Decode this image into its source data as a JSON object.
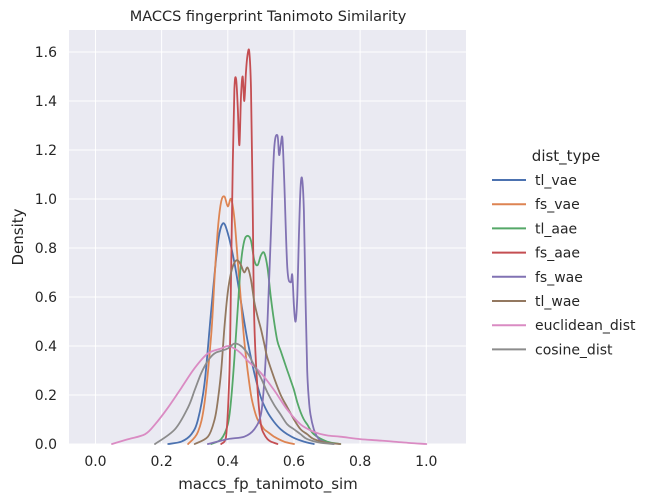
{
  "chart_data": {
    "type": "line",
    "title": "MACCS fingerprint Tanimoto Similarity",
    "xlabel": "maccs_fp_tanimoto_sim",
    "ylabel": "Density",
    "xlim": [
      -0.08,
      1.12
    ],
    "ylim": [
      0.0,
      1.69
    ],
    "xticks": [
      0.0,
      0.2,
      0.4,
      0.6,
      0.8,
      1.0
    ],
    "xtick_labels": [
      "0.0",
      "0.2",
      "0.4",
      "0.6",
      "0.8",
      "1.0"
    ],
    "yticks": [
      0.0,
      0.2,
      0.4,
      0.6,
      0.8,
      1.0,
      1.2,
      1.4,
      1.6
    ],
    "ytick_labels": [
      "0.0",
      "0.2",
      "0.4",
      "0.6",
      "0.8",
      "1.0",
      "1.2",
      "1.4",
      "1.6"
    ],
    "grid": true,
    "background": "#eaeaf2",
    "legend": {
      "title": "dist_type",
      "placement": "right-outside"
    },
    "series": [
      {
        "name": "tl_vae",
        "color": "#4c72b0",
        "x": [
          0.22,
          0.26,
          0.29,
          0.31,
          0.33,
          0.35,
          0.37,
          0.385,
          0.4,
          0.42,
          0.44,
          0.46,
          0.48,
          0.5,
          0.52,
          0.54,
          0.56,
          0.58,
          0.6,
          0.63,
          0.66
        ],
        "y": [
          0.0,
          0.01,
          0.04,
          0.1,
          0.25,
          0.55,
          0.82,
          0.9,
          0.86,
          0.74,
          0.58,
          0.42,
          0.29,
          0.19,
          0.13,
          0.09,
          0.06,
          0.04,
          0.025,
          0.01,
          0.0
        ]
      },
      {
        "name": "fs_vae",
        "color": "#dd8452",
        "x": [
          0.28,
          0.31,
          0.33,
          0.35,
          0.36,
          0.37,
          0.38,
          0.39,
          0.4,
          0.41,
          0.42,
          0.43,
          0.44,
          0.45,
          0.46,
          0.47,
          0.48,
          0.49,
          0.5,
          0.51,
          0.52,
          0.54,
          0.57,
          0.6
        ],
        "y": [
          0.0,
          0.05,
          0.17,
          0.45,
          0.68,
          0.88,
          0.99,
          1.01,
          0.97,
          1.0,
          0.92,
          0.75,
          0.58,
          0.42,
          0.3,
          0.2,
          0.14,
          0.1,
          0.08,
          0.06,
          0.05,
          0.03,
          0.01,
          0.0
        ]
      },
      {
        "name": "tl_aae",
        "color": "#55a868",
        "x": [
          0.35,
          0.38,
          0.4,
          0.41,
          0.42,
          0.43,
          0.44,
          0.45,
          0.46,
          0.47,
          0.48,
          0.49,
          0.5,
          0.51,
          0.52,
          0.53,
          0.54,
          0.55,
          0.56,
          0.57,
          0.58,
          0.59,
          0.6,
          0.61,
          0.62,
          0.63,
          0.64,
          0.66,
          0.7,
          0.74
        ],
        "y": [
          0.0,
          0.02,
          0.08,
          0.18,
          0.35,
          0.55,
          0.74,
          0.83,
          0.85,
          0.83,
          0.75,
          0.73,
          0.77,
          0.78,
          0.72,
          0.6,
          0.5,
          0.42,
          0.38,
          0.34,
          0.3,
          0.26,
          0.22,
          0.17,
          0.13,
          0.1,
          0.08,
          0.04,
          0.01,
          0.0
        ]
      },
      {
        "name": "fs_aae",
        "color": "#c44e52",
        "x": [
          0.38,
          0.395,
          0.405,
          0.41,
          0.415,
          0.42,
          0.425,
          0.43,
          0.435,
          0.44,
          0.445,
          0.45,
          0.455,
          0.46,
          0.465,
          0.47,
          0.475,
          0.48,
          0.49,
          0.5,
          0.51,
          0.52,
          0.53,
          0.55
        ],
        "y": [
          0.0,
          0.03,
          0.3,
          0.7,
          1.15,
          1.45,
          1.49,
          1.38,
          1.22,
          1.42,
          1.5,
          1.4,
          1.52,
          1.59,
          1.6,
          1.45,
          1.0,
          0.5,
          0.22,
          0.08,
          0.04,
          0.02,
          0.01,
          0.0
        ]
      },
      {
        "name": "fs_wae",
        "color": "#8172b3",
        "x": [
          0.34,
          0.4,
          0.45,
          0.48,
          0.5,
          0.51,
          0.52,
          0.53,
          0.54,
          0.55,
          0.555,
          0.56,
          0.565,
          0.57,
          0.58,
          0.59,
          0.595,
          0.6,
          0.605,
          0.61,
          0.615,
          0.62,
          0.625,
          0.63,
          0.635,
          0.64,
          0.645,
          0.65,
          0.66,
          0.67,
          0.68,
          0.7,
          0.72
        ],
        "y": [
          0.0,
          0.02,
          0.03,
          0.06,
          0.12,
          0.25,
          0.5,
          0.85,
          1.2,
          1.26,
          1.18,
          1.22,
          1.25,
          1.1,
          0.72,
          0.66,
          0.69,
          0.56,
          0.5,
          0.6,
          0.85,
          1.05,
          1.08,
          0.95,
          0.6,
          0.3,
          0.18,
          0.12,
          0.06,
          0.03,
          0.015,
          0.005,
          0.0
        ]
      },
      {
        "name": "tl_wae",
        "color": "#937860",
        "x": [
          0.3,
          0.34,
          0.36,
          0.37,
          0.38,
          0.39,
          0.4,
          0.41,
          0.42,
          0.43,
          0.44,
          0.45,
          0.46,
          0.47,
          0.48,
          0.49,
          0.5,
          0.51,
          0.52,
          0.54,
          0.56,
          0.58,
          0.6,
          0.62,
          0.64,
          0.66,
          0.7,
          0.74
        ],
        "y": [
          0.0,
          0.03,
          0.1,
          0.18,
          0.3,
          0.48,
          0.62,
          0.7,
          0.74,
          0.75,
          0.73,
          0.7,
          0.72,
          0.67,
          0.58,
          0.52,
          0.47,
          0.41,
          0.35,
          0.27,
          0.2,
          0.15,
          0.1,
          0.06,
          0.04,
          0.02,
          0.005,
          0.0
        ]
      },
      {
        "name": "euclidean_dist",
        "color": "#da8bc3",
        "x": [
          0.05,
          0.1,
          0.15,
          0.18,
          0.22,
          0.26,
          0.3,
          0.34,
          0.38,
          0.4,
          0.42,
          0.44,
          0.46,
          0.5,
          0.54,
          0.58,
          0.62,
          0.66,
          0.7,
          0.74,
          0.8,
          0.85,
          0.9,
          0.95,
          1.0
        ],
        "y": [
          0.0,
          0.02,
          0.04,
          0.08,
          0.15,
          0.23,
          0.31,
          0.37,
          0.39,
          0.4,
          0.39,
          0.37,
          0.34,
          0.29,
          0.22,
          0.14,
          0.08,
          0.05,
          0.035,
          0.03,
          0.02,
          0.015,
          0.01,
          0.004,
          0.0
        ]
      },
      {
        "name": "cosine_dist",
        "color": "#8c8c8c",
        "x": [
          0.18,
          0.24,
          0.28,
          0.3,
          0.32,
          0.34,
          0.36,
          0.38,
          0.4,
          0.42,
          0.44,
          0.46,
          0.48,
          0.5,
          0.52,
          0.54,
          0.56,
          0.58,
          0.6,
          0.62,
          0.64,
          0.68,
          0.72
        ],
        "y": [
          0.0,
          0.06,
          0.15,
          0.22,
          0.29,
          0.34,
          0.37,
          0.38,
          0.39,
          0.41,
          0.4,
          0.37,
          0.32,
          0.27,
          0.21,
          0.16,
          0.12,
          0.08,
          0.06,
          0.04,
          0.02,
          0.005,
          0.0
        ]
      }
    ]
  }
}
